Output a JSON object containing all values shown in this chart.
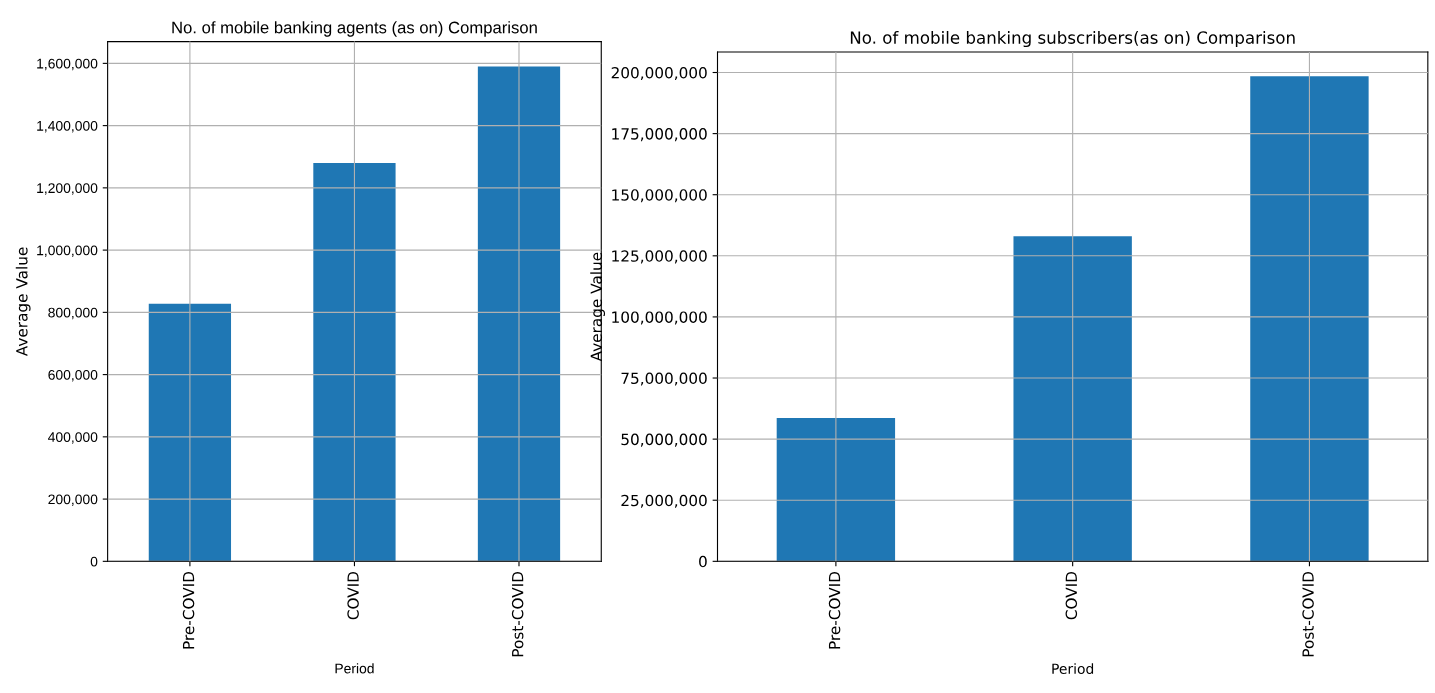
{
  "chart_data": [
    {
      "type": "bar",
      "title": "No. of mobile banking agents (as on) Comparison",
      "xlabel": "Period",
      "ylabel": "Average Value",
      "categories": [
        "Pre-COVID",
        "COVID",
        "Post-COVID"
      ],
      "series": [
        {
          "color": "#1f77b4",
          "values": [
            828000,
            1280000,
            1590000
          ]
        }
      ],
      "ylim": [
        0,
        1670000
      ],
      "yticks": [
        {
          "value": 0,
          "label": "0"
        },
        {
          "value": 200000,
          "label": "200,000"
        },
        {
          "value": 400000,
          "label": "400,000"
        },
        {
          "value": 600000,
          "label": "600,000"
        },
        {
          "value": 800000,
          "label": "800,000"
        },
        {
          "value": 1000000,
          "label": "1,000,000"
        },
        {
          "value": 1200000,
          "label": "1,200,000"
        },
        {
          "value": 1400000,
          "label": "1,400,000"
        },
        {
          "value": 1600000,
          "label": "1,600,000"
        }
      ],
      "grid": true
    },
    {
      "type": "bar",
      "title": "No. of mobile banking subscribers(as on) Comparison",
      "xlabel": "Period",
      "ylabel": "Average Value",
      "categories": [
        "Pre-COVID",
        "COVID",
        "Post-COVID"
      ],
      "series": [
        {
          "color": "#1f77b4",
          "values": [
            58600000,
            133000000,
            198500000
          ]
        }
      ],
      "ylim": [
        0,
        208400000
      ],
      "yticks": [
        {
          "value": 0,
          "label": "0"
        },
        {
          "value": 25000000,
          "label": "25,000,000"
        },
        {
          "value": 50000000,
          "label": "50,000,000"
        },
        {
          "value": 75000000,
          "label": "75,000,000"
        },
        {
          "value": 100000000,
          "label": "100,000,000"
        },
        {
          "value": 125000000,
          "label": "125,000,000"
        },
        {
          "value": 150000000,
          "label": "150,000,000"
        },
        {
          "value": 175000000,
          "label": "175,000,000"
        },
        {
          "value": 200000000,
          "label": "200,000,000"
        }
      ],
      "grid": true
    }
  ]
}
